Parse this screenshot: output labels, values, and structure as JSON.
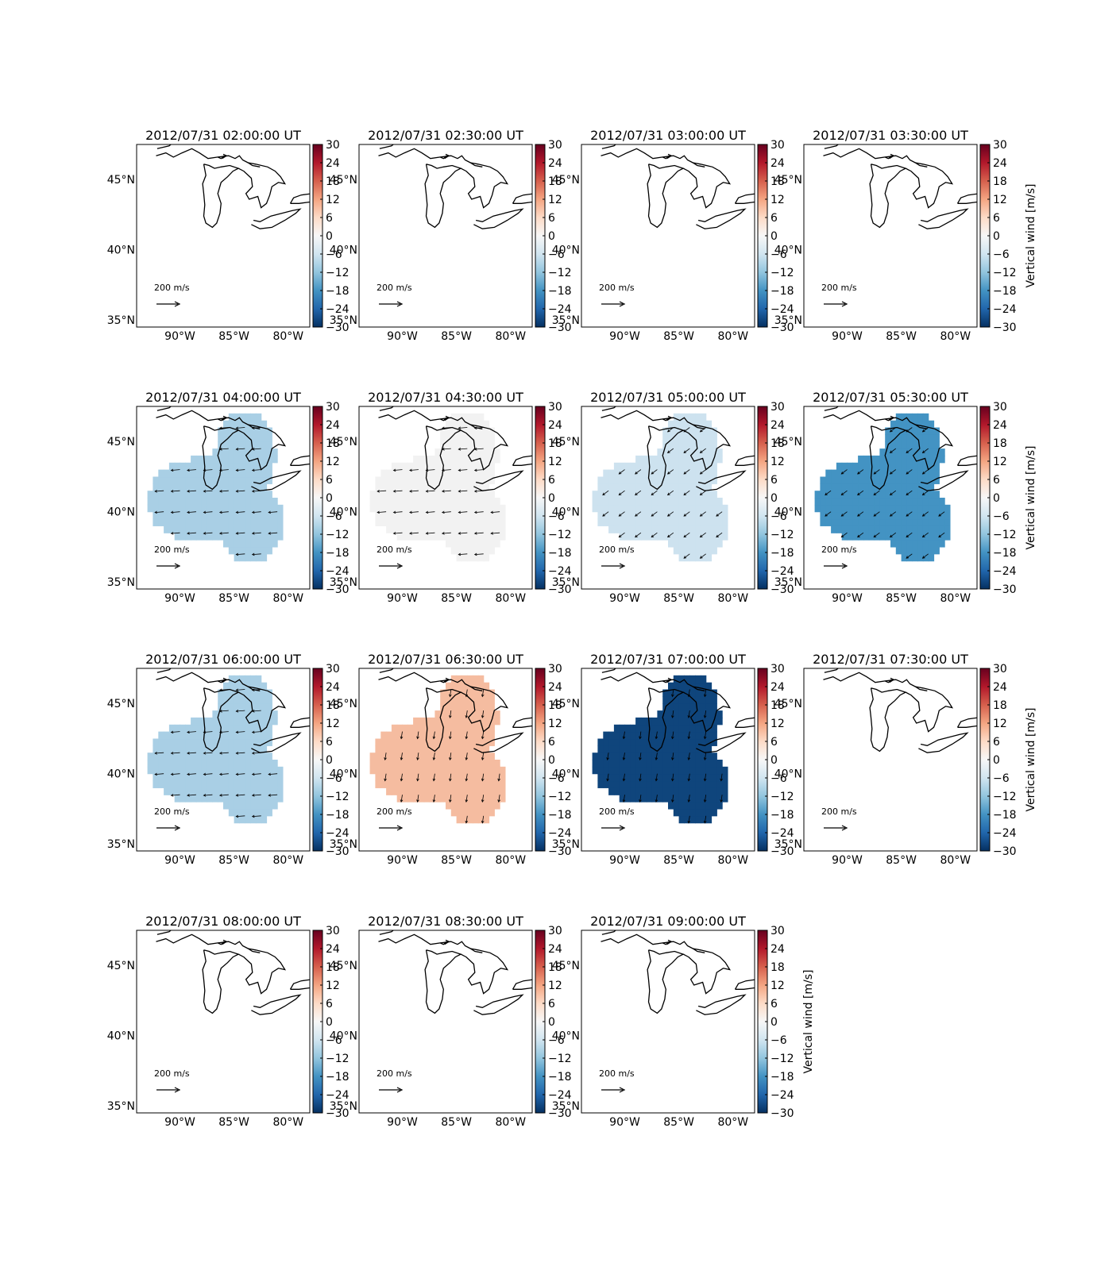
{
  "figure": {
    "colorbar": {
      "label": "Vertical wind [m/s]",
      "ticks": [
        30,
        24,
        18,
        12,
        6,
        0,
        -6,
        -12,
        -18,
        -24,
        -30
      ],
      "range": [
        -30,
        30
      ],
      "cmap": "RdBu_r"
    },
    "map_axes": {
      "lat_labels": [
        "45°N",
        "40°N",
        "35°N"
      ],
      "lon_labels": [
        "90°W",
        "85°W",
        "80°W"
      ]
    },
    "scale_arrow_label": "200 m/s",
    "panels": [
      {
        "title": "2012/07/31 02:00:00 UT",
        "show_cbar_label": false,
        "fill": null,
        "arrows": null
      },
      {
        "title": "2012/07/31 02:30:00 UT",
        "show_cbar_label": false,
        "fill": null,
        "arrows": null
      },
      {
        "title": "2012/07/31 03:00:00 UT",
        "show_cbar_label": false,
        "fill": null,
        "arrows": null
      },
      {
        "title": "2012/07/31 03:30:00 UT",
        "show_cbar_label": true,
        "fill": null,
        "arrows": null
      },
      {
        "title": "2012/07/31 04:00:00 UT",
        "show_cbar_label": false,
        "fill": "#a9cfe5",
        "arrows": "west"
      },
      {
        "title": "2012/07/31 04:30:00 UT",
        "show_cbar_label": false,
        "fill": "#f2f2f2",
        "arrows": "west"
      },
      {
        "title": "2012/07/31 05:00:00 UT",
        "show_cbar_label": false,
        "fill": "#cde2ef",
        "arrows": "southwest"
      },
      {
        "title": "2012/07/31 05:30:00 UT",
        "show_cbar_label": true,
        "fill": "#4393c3",
        "arrows": "southwest"
      },
      {
        "title": "2012/07/31 06:00:00 UT",
        "show_cbar_label": false,
        "fill": "#a9cfe5",
        "arrows": "west"
      },
      {
        "title": "2012/07/31 06:30:00 UT",
        "show_cbar_label": false,
        "fill": "#f5bca0",
        "arrows": "south"
      },
      {
        "title": "2012/07/31 07:00:00 UT",
        "show_cbar_label": false,
        "fill": "#0f457c",
        "arrows": "south"
      },
      {
        "title": "2012/07/31 07:30:00 UT",
        "show_cbar_label": true,
        "fill": null,
        "arrows": null
      },
      {
        "title": "2012/07/31 08:00:00 UT",
        "show_cbar_label": false,
        "fill": null,
        "arrows": null
      },
      {
        "title": "2012/07/31 08:30:00 UT",
        "show_cbar_label": false,
        "fill": null,
        "arrows": null
      },
      {
        "title": "2012/07/31 09:00:00 UT",
        "show_cbar_label": true,
        "fill": null,
        "arrows": null
      }
    ]
  }
}
